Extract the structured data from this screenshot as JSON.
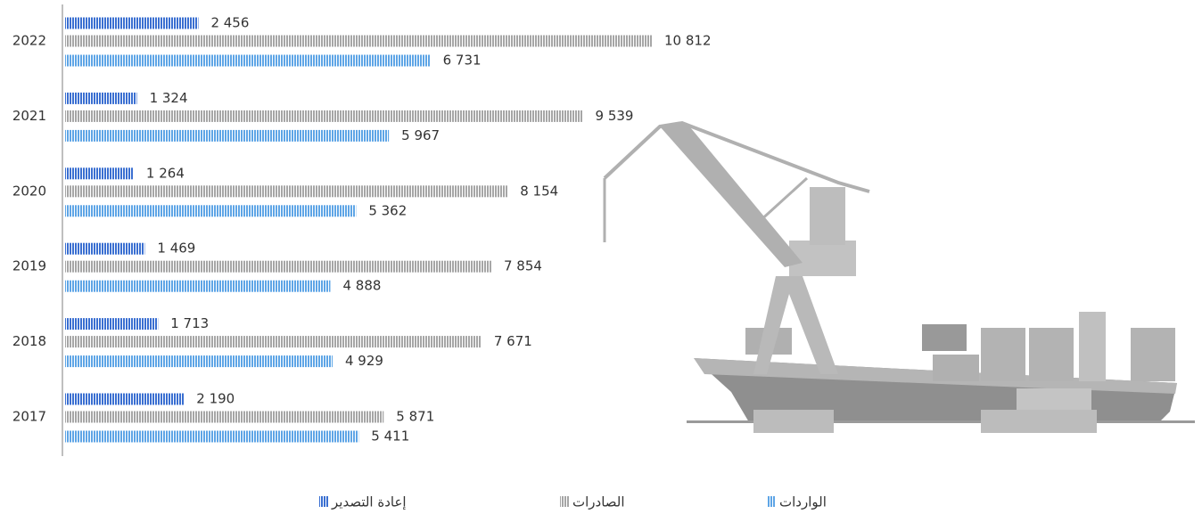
{
  "chart_data": {
    "type": "bar",
    "orientation": "horizontal",
    "categories": [
      "2022",
      "2021",
      "2020",
      "2019",
      "2018",
      "2017"
    ],
    "series": [
      {
        "name": "إعادة التصدير",
        "color": "#3a6fd1",
        "values": [
          2456,
          1324,
          1264,
          1469,
          1713,
          2190
        ],
        "value_labels": [
          "2 456",
          "1 324",
          "1 264",
          "1 469",
          "1 713",
          "2 190"
        ]
      },
      {
        "name": "الصادرات",
        "color": "#a6a6a6",
        "values": [
          10812,
          9539,
          8154,
          7854,
          7671,
          5871
        ],
        "value_labels": [
          "10 812",
          "9 539",
          "8 154",
          "7 854",
          "7 671",
          "5 871"
        ]
      },
      {
        "name": "الواردات",
        "color": "#5ea5e6",
        "values": [
          6731,
          5967,
          5362,
          4888,
          4929,
          5411
        ],
        "value_labels": [
          "6 731",
          "5 967",
          "5 362",
          "4 888",
          "4 929",
          "5 411"
        ]
      }
    ]
  }
}
